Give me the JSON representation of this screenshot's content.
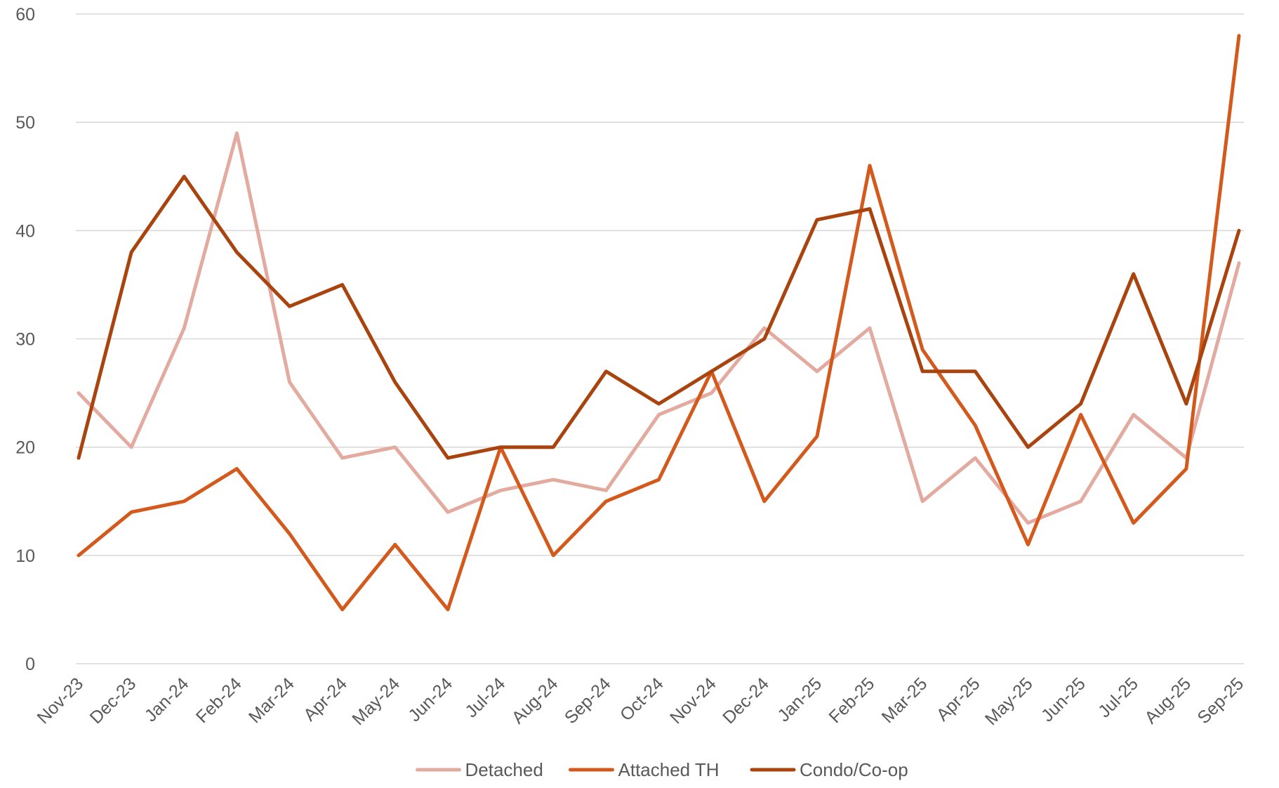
{
  "chart_data": {
    "type": "line",
    "title": "",
    "xlabel": "",
    "ylabel": "",
    "ylim": [
      0,
      60
    ],
    "yticks": [
      0,
      10,
      20,
      30,
      40,
      50,
      60
    ],
    "grid": true,
    "legend_position": "bottom",
    "categories": [
      "Nov-23",
      "Dec-23",
      "Jan-24",
      "Feb-24",
      "Mar-24",
      "Apr-24",
      "May-24",
      "Jun-24",
      "Jul-24",
      "Aug-24",
      "Sep-24",
      "Oct-24",
      "Nov-24",
      "Dec-24",
      "Jan-25",
      "Feb-25",
      "Mar-25",
      "Apr-25",
      "May-25",
      "Jun-25",
      "Jul-25",
      "Aug-25",
      "Sep-25"
    ],
    "series": [
      {
        "name": "Detached",
        "color": "#e3aaa0",
        "values": [
          25,
          20,
          31,
          49,
          26,
          19,
          20,
          14,
          16,
          17,
          16,
          23,
          25,
          31,
          27,
          31,
          15,
          19,
          13,
          15,
          23,
          19,
          37
        ]
      },
      {
        "name": "Attached TH",
        "color": "#d35a1c",
        "values": [
          10,
          14,
          15,
          18,
          12,
          5,
          11,
          5,
          20,
          10,
          15,
          17,
          27,
          15,
          21,
          46,
          29,
          22,
          11,
          23,
          13,
          18,
          58
        ]
      },
      {
        "name": "Condo/Co-op",
        "color": "#a9440f",
        "values": [
          19,
          38,
          45,
          38,
          33,
          35,
          26,
          19,
          20,
          20,
          27,
          24,
          27,
          30,
          41,
          42,
          27,
          27,
          20,
          24,
          36,
          24,
          40
        ]
      }
    ]
  }
}
